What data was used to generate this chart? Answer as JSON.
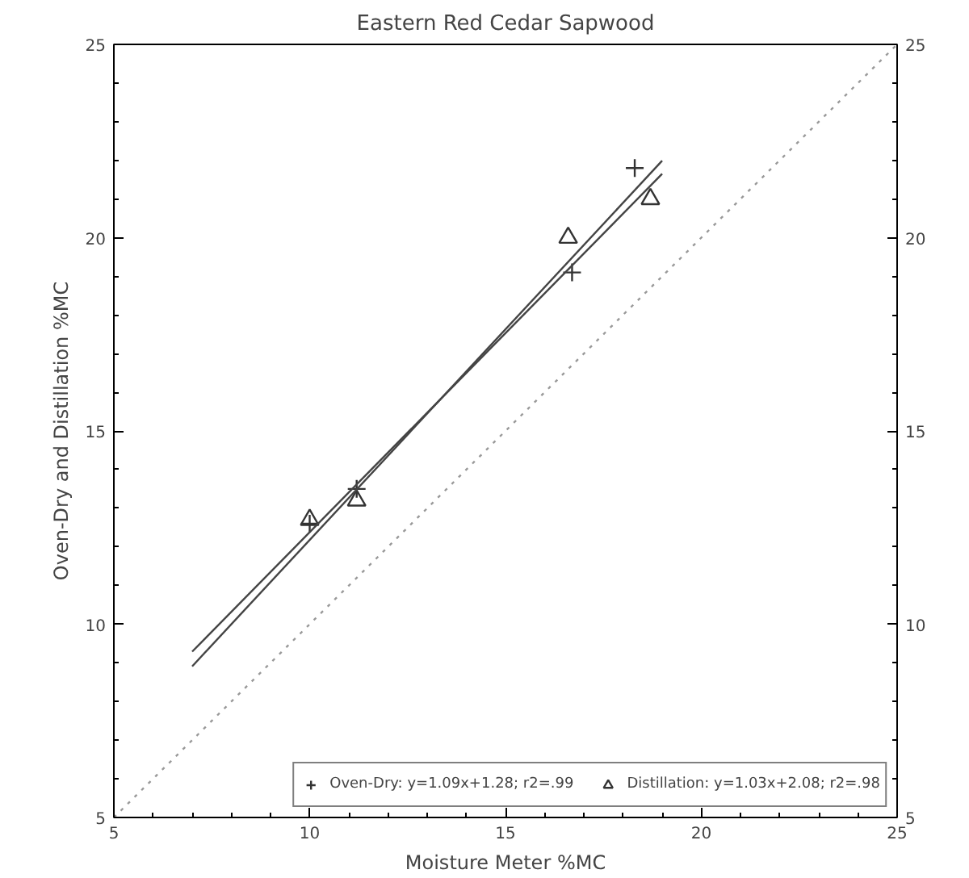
{
  "chart_data": {
    "type": "scatter",
    "title": "Eastern Red Cedar Sapwood",
    "xlabel": "Moisture Meter %MC",
    "ylabel": "Oven-Dry and Distillation %MC",
    "xlim": [
      5,
      25
    ],
    "ylim": [
      5,
      25
    ],
    "xticks": [
      5,
      10,
      15,
      20,
      25
    ],
    "yticks": [
      5,
      10,
      15,
      20,
      25
    ],
    "y2lim": [
      5,
      25
    ],
    "y2ticks": [
      5,
      10,
      15,
      20,
      25
    ],
    "grid": false,
    "legend": "bottom right",
    "series": [
      {
        "name": "Oven-Dry: y=1.09x+1.28; r2=.99",
        "marker": "cross",
        "color": "#333333",
        "x": [
          10,
          11.2,
          16.7,
          18.3
        ],
        "values": [
          12.6,
          13.5,
          19.1,
          21.8
        ]
      },
      {
        "name": "Distillation: y=1.03x+2.08; r2=.98",
        "marker": "triangle",
        "color": "#333333",
        "x": [
          10,
          11.2,
          16.6,
          18.7
        ],
        "values": [
          12.7,
          13.2,
          20.0,
          21.0
        ]
      },
      {
        "type": "line",
        "line_style": "solid",
        "color": "#444444",
        "x": [
          7,
          19
        ],
        "values": [
          8.91,
          21.99
        ]
      },
      {
        "type": "line",
        "line_style": "solid",
        "color": "#444444",
        "x": [
          7,
          19
        ],
        "values": [
          9.29,
          21.65
        ]
      },
      {
        "type": "line",
        "line_style": "dotted",
        "color": "#999999",
        "x": [
          5,
          25
        ],
        "values": [
          5,
          25
        ]
      }
    ]
  }
}
